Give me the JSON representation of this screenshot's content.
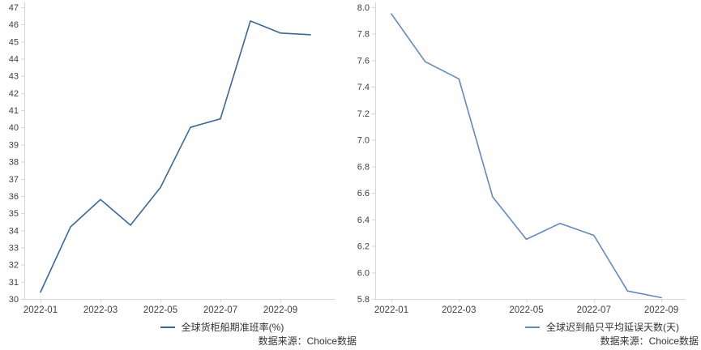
{
  "source_note": "数据来源：Choice数据",
  "chart_data": [
    {
      "type": "line",
      "title": "",
      "legend": "全球货柜船期准班率(%)",
      "x": [
        "2022-01",
        "2022-02",
        "2022-03",
        "2022-04",
        "2022-05",
        "2022-06",
        "2022-07",
        "2022-08",
        "2022-09",
        "2022-10"
      ],
      "values": [
        30.4,
        34.2,
        35.8,
        34.3,
        36.5,
        40.0,
        40.5,
        46.2,
        45.5,
        45.4
      ],
      "ylim": [
        30,
        47
      ],
      "y_tick_step": 1,
      "y_tick_labels_top_down": [
        "47",
        "46",
        "45",
        "44",
        "43",
        "42",
        "41",
        "40",
        "39",
        "38",
        "37",
        "36",
        "35",
        "34",
        "33",
        "32",
        "31",
        "30"
      ],
      "x_tick_labels": [
        "2022-01",
        "2022-03",
        "2022-05",
        "2022-07",
        "2022-09"
      ],
      "x_tick_indices": [
        0,
        2,
        4,
        6,
        8
      ],
      "line_color": "#3a679b",
      "grid": false,
      "legend_position": "bottom",
      "source": "数据来源：Choice数据"
    },
    {
      "type": "line",
      "title": "",
      "legend": "全球迟到船只平均延误天数(天)",
      "x": [
        "2022-01",
        "2022-02",
        "2022-03",
        "2022-04",
        "2022-05",
        "2022-06",
        "2022-07",
        "2022-08",
        "2022-09"
      ],
      "values": [
        7.95,
        7.59,
        7.46,
        6.57,
        6.25,
        6.37,
        6.28,
        5.86,
        5.81
      ],
      "ylim": [
        5.8,
        8.0
      ],
      "y_tick_step": 0.2,
      "y_tick_labels_top_down": [
        "8.0",
        "7.8",
        "7.6",
        "7.4",
        "7.2",
        "7.0",
        "6.8",
        "6.6",
        "6.4",
        "6.2",
        "6.0",
        "5.8"
      ],
      "x_tick_labels": [
        "2022-01",
        "2022-03",
        "2022-05",
        "2022-07",
        "2022-09"
      ],
      "x_tick_indices": [
        0,
        2,
        4,
        6,
        8
      ],
      "line_color": "#6189c4",
      "grid": false,
      "legend_position": "bottom",
      "source": "数据来源：Choice数据"
    }
  ]
}
